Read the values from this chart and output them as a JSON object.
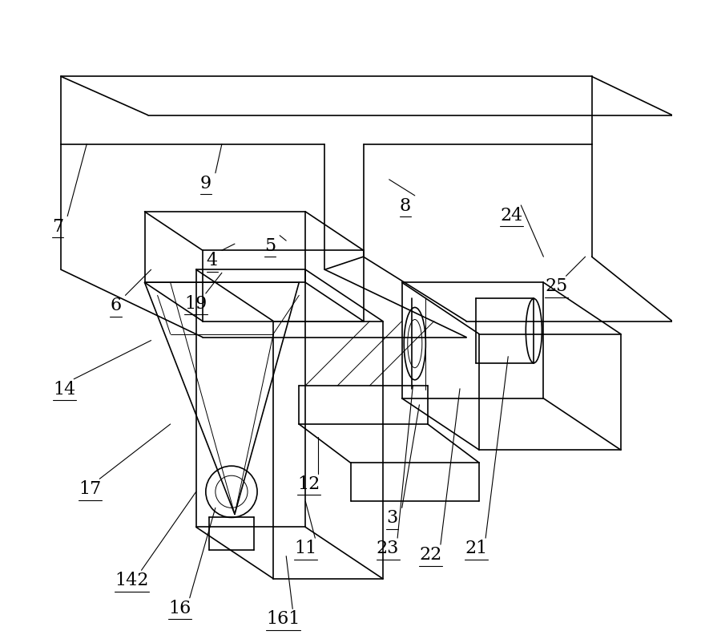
{
  "bg_color": "#ffffff",
  "line_color": "#000000",
  "label_color": "#000000",
  "title": "",
  "fig_width": 8.75,
  "fig_height": 8.03,
  "dpi": 100,
  "label_positions": {
    "3": [
      0.565,
      0.195,
      0.607,
      0.37
    ],
    "6": [
      0.135,
      0.525,
      0.19,
      0.58
    ],
    "7": [
      0.045,
      0.648,
      0.09,
      0.775
    ],
    "8": [
      0.585,
      0.68,
      0.56,
      0.72
    ],
    "9": [
      0.275,
      0.715,
      0.3,
      0.775
    ],
    "4": [
      0.285,
      0.595,
      0.32,
      0.62
    ],
    "5": [
      0.375,
      0.618,
      0.4,
      0.625
    ],
    "11": [
      0.43,
      0.148,
      0.43,
      0.22
    ],
    "12": [
      0.435,
      0.248,
      0.45,
      0.32
    ],
    "14": [
      0.055,
      0.395,
      0.19,
      0.47
    ],
    "16": [
      0.235,
      0.055,
      0.29,
      0.21
    ],
    "17": [
      0.095,
      0.24,
      0.22,
      0.34
    ],
    "19": [
      0.26,
      0.528,
      0.3,
      0.575
    ],
    "21": [
      0.695,
      0.148,
      0.745,
      0.445
    ],
    "22": [
      0.625,
      0.138,
      0.67,
      0.395
    ],
    "23": [
      0.558,
      0.148,
      0.597,
      0.4
    ],
    "24": [
      0.75,
      0.665,
      0.8,
      0.6
    ],
    "25": [
      0.82,
      0.555,
      0.865,
      0.6
    ],
    "142": [
      0.16,
      0.098,
      0.26,
      0.235
    ],
    "161": [
      0.395,
      0.038,
      0.4,
      0.135
    ]
  }
}
